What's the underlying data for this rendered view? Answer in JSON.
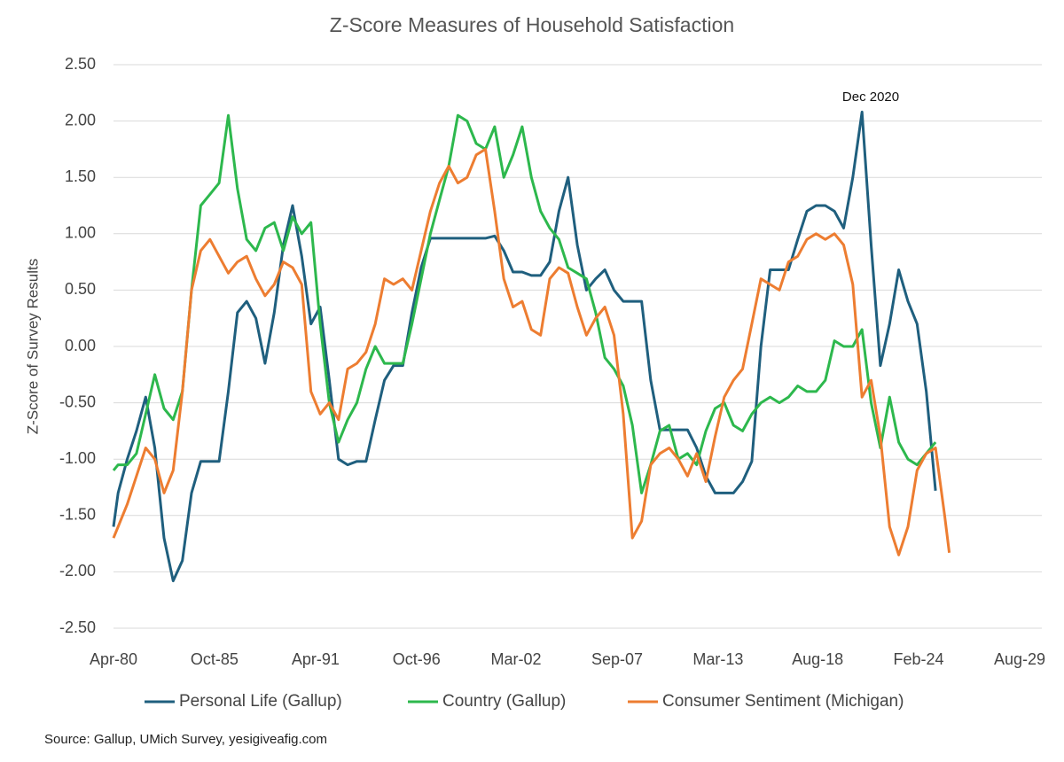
{
  "chart_data": {
    "type": "line",
    "title": "Z-Score Measures of Household Satisfaction",
    "y_label": "Z-Score of Survey Results",
    "source": "Source: Gallup, UMich Survey, yesigiveafig.com",
    "annotations": [
      {
        "text": "Dec 2020"
      }
    ],
    "xlim": [
      "Apr-80",
      "Aug-29"
    ],
    "xticks": [
      "Apr-80",
      "Oct-85",
      "Apr-91",
      "Oct-96",
      "Mar-02",
      "Sep-07",
      "Mar-13",
      "Aug-18",
      "Feb-24",
      "Aug-29"
    ],
    "ylim": [
      -2.5,
      2.5
    ],
    "yticks": [
      {
        "value": -2.5,
        "label": "-2.50"
      },
      {
        "value": -2,
        "label": "-2.00"
      },
      {
        "value": -1.5,
        "label": "-1.50"
      },
      {
        "value": -1,
        "label": "-1.00"
      },
      {
        "value": -0.5,
        "label": "-0.50"
      },
      {
        "value": 0,
        "label": "0.00"
      },
      {
        "value": 0.5,
        "label": "0.50"
      },
      {
        "value": 1,
        "label": "1.00"
      },
      {
        "value": 1.5,
        "label": "1.50"
      },
      {
        "value": 2,
        "label": "2.00"
      },
      {
        "value": 2.5,
        "label": "2.50"
      }
    ],
    "grid": true,
    "legend": "bottom",
    "x": [
      "Apr-80",
      "Jul-80",
      "Jan-81",
      "Jul-81",
      "Jan-82",
      "Jul-82",
      "Jan-83",
      "Jul-83",
      "Jan-84",
      "Jul-84",
      "Jan-85",
      "Jul-85",
      "Jan-86",
      "Jul-86",
      "Jan-87",
      "Jul-87",
      "Jan-88",
      "Jul-88",
      "Jan-89",
      "Jul-89",
      "Jan-90",
      "Jul-90",
      "Jan-91",
      "Jul-91",
      "Jan-92",
      "Jul-92",
      "Jan-93",
      "Jul-93",
      "Jan-94",
      "Jul-94",
      "Jan-95",
      "Jul-95",
      "Jan-96",
      "Jul-96",
      "Jan-97",
      "Jul-97",
      "Jan-98",
      "Jul-98",
      "Jan-99",
      "Jul-99",
      "Jan-00",
      "Jul-00",
      "Jan-01",
      "Jul-01",
      "Jan-02",
      "Jul-02",
      "Jan-03",
      "Jul-03",
      "Jan-04",
      "Jul-04",
      "Jan-05",
      "Jul-05",
      "Jan-06",
      "Jul-06",
      "Jan-07",
      "Jul-07",
      "Jan-08",
      "Jul-08",
      "Jan-09",
      "Jul-09",
      "Jan-10",
      "Jul-10",
      "Jan-11",
      "Jul-11",
      "Jan-12",
      "Jul-12",
      "Jan-13",
      "Jul-13",
      "Jan-14",
      "Jul-14",
      "Jan-15",
      "Jul-15",
      "Jan-16",
      "Jul-16",
      "Jan-17",
      "Jul-17",
      "Jan-18",
      "Jul-18",
      "Jan-19",
      "Jul-19",
      "Jan-20",
      "Jul-20",
      "Jan-21",
      "Jul-21",
      "Jan-22",
      "Jul-22",
      "Jan-23",
      "Jul-23",
      "Jan-24",
      "Jul-24",
      "Jan-25",
      "Jul-25",
      "Oct-25"
    ],
    "series": [
      {
        "name": "Personal Life (Gallup)",
        "color": "#1f5f7e",
        "values": [
          -1.6,
          -1.3,
          -1.0,
          -0.75,
          -0.45,
          -0.9,
          -1.7,
          -2.08,
          -1.9,
          -1.3,
          -1.02,
          -1.02,
          -1.02,
          -0.4,
          0.3,
          0.4,
          0.25,
          -0.15,
          0.3,
          0.9,
          1.25,
          0.8,
          0.2,
          0.35,
          -0.3,
          -1.0,
          -1.05,
          -1.02,
          -1.02,
          -0.65,
          -0.3,
          -0.17,
          -0.17,
          0.3,
          0.7,
          0.96,
          0.96,
          0.96,
          0.96,
          0.96,
          0.96,
          0.96,
          0.98,
          0.85,
          0.66,
          0.66,
          0.63,
          0.63,
          0.75,
          1.2,
          1.5,
          0.9,
          0.5,
          0.6,
          0.68,
          0.5,
          0.4,
          0.4,
          0.4,
          -0.3,
          -0.74,
          -0.74,
          -0.74,
          -0.74,
          -0.9,
          -1.15,
          -1.3,
          -1.3,
          -1.3,
          -1.2,
          -1.02,
          0.0,
          0.68,
          0.68,
          0.68,
          0.95,
          1.2,
          1.25,
          1.25,
          1.2,
          1.05,
          1.5,
          2.08,
          0.9,
          -0.17,
          0.2,
          0.68,
          0.4,
          0.2,
          -0.4,
          -1.28,
          null,
          null
        ]
      },
      {
        "name": "Country (Gallup)",
        "color": "#2db84d",
        "values": [
          -1.1,
          -1.05,
          -1.05,
          -0.95,
          -0.6,
          -0.25,
          -0.55,
          -0.65,
          -0.4,
          0.5,
          1.25,
          1.35,
          1.45,
          2.05,
          1.4,
          0.95,
          0.85,
          1.05,
          1.1,
          0.85,
          1.15,
          1.0,
          1.1,
          0.2,
          -0.5,
          -0.85,
          -0.65,
          -0.5,
          -0.2,
          0.0,
          -0.15,
          -0.15,
          -0.15,
          0.2,
          0.6,
          1.0,
          1.3,
          1.6,
          2.05,
          2.0,
          1.8,
          1.75,
          1.95,
          1.5,
          1.7,
          1.95,
          1.5,
          1.2,
          1.05,
          0.95,
          0.7,
          0.65,
          0.6,
          0.3,
          -0.1,
          -0.2,
          -0.35,
          -0.7,
          -1.3,
          -1.05,
          -0.75,
          -0.7,
          -1.0,
          -0.95,
          -1.05,
          -0.75,
          -0.55,
          -0.5,
          -0.7,
          -0.75,
          -0.6,
          -0.5,
          -0.45,
          -0.5,
          -0.45,
          -0.35,
          -0.4,
          -0.4,
          -0.3,
          0.05,
          0.0,
          0.0,
          0.15,
          -0.5,
          -0.9,
          -0.45,
          -0.85,
          -1.0,
          -1.05,
          -0.95,
          -0.85,
          null,
          null
        ]
      },
      {
        "name": "Consumer Sentiment (Michigan)",
        "color": "#ed7d31",
        "values": [
          -1.7,
          -1.6,
          -1.4,
          -1.15,
          -0.9,
          -1.0,
          -1.3,
          -1.1,
          -0.4,
          0.5,
          0.85,
          0.95,
          0.8,
          0.65,
          0.75,
          0.8,
          0.6,
          0.45,
          0.55,
          0.75,
          0.7,
          0.55,
          -0.4,
          -0.6,
          -0.5,
          -0.65,
          -0.2,
          -0.15,
          -0.05,
          0.2,
          0.6,
          0.55,
          0.6,
          0.5,
          0.85,
          1.2,
          1.45,
          1.6,
          1.45,
          1.5,
          1.7,
          1.75,
          1.2,
          0.6,
          0.35,
          0.4,
          0.15,
          0.1,
          0.6,
          0.7,
          0.65,
          0.35,
          0.1,
          0.25,
          0.35,
          0.1,
          -0.6,
          -1.7,
          -1.55,
          -1.05,
          -0.95,
          -0.9,
          -1.0,
          -1.15,
          -0.95,
          -1.2,
          -0.8,
          -0.45,
          -0.3,
          -0.2,
          0.2,
          0.6,
          0.55,
          0.5,
          0.75,
          0.8,
          0.95,
          1.0,
          0.95,
          1.0,
          0.9,
          0.55,
          -0.45,
          -0.3,
          -0.8,
          -1.6,
          -1.85,
          -1.6,
          -1.1,
          -0.95,
          -0.9,
          -1.5,
          -1.83
        ]
      }
    ]
  }
}
